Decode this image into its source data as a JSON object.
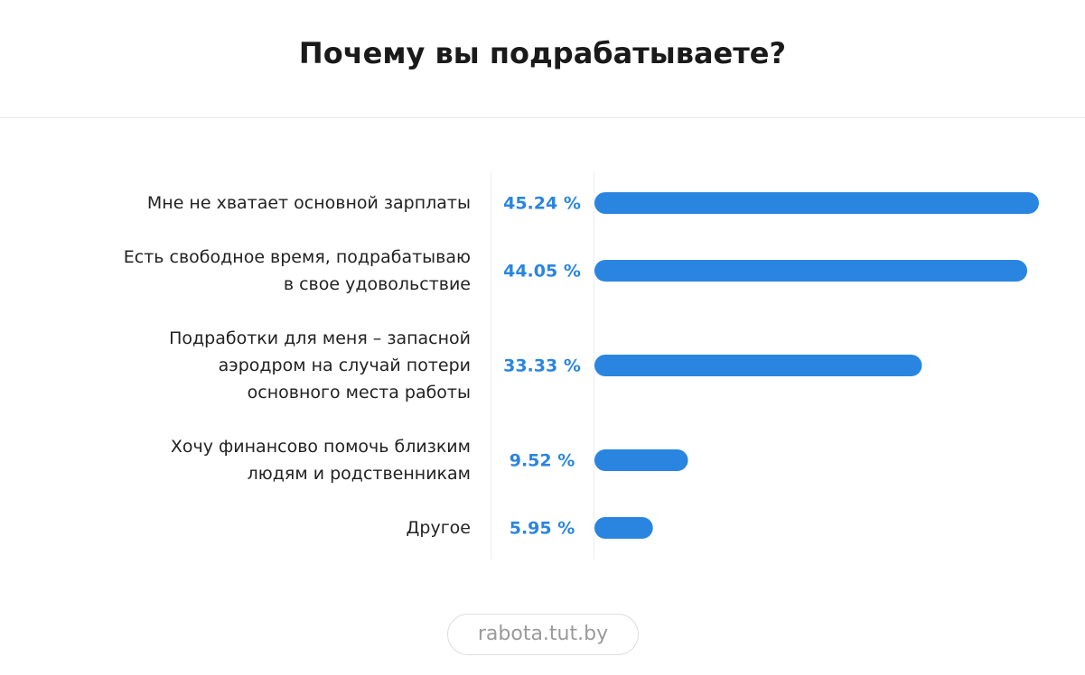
{
  "chart_data": {
    "type": "bar",
    "orientation": "horizontal",
    "title": "Почему вы подрабатываете?",
    "categories": [
      "Мне не хватает основной зарплаты",
      "Есть свободное время, подрабатываю\nв свое удовольствие",
      "Подработки для меня – запасной\nаэродром на случай потери\nосновного места работы",
      "Хочу финансово помочь близким\nлюдям и родственникам",
      "Другое"
    ],
    "values": [
      45.24,
      44.05,
      33.33,
      9.52,
      5.95
    ],
    "value_labels": [
      "45.24 %",
      "44.05 %",
      "33.33 %",
      "9.52 %",
      "5.95 %"
    ],
    "color": "#2a85e0",
    "source": "rabota.tut.by"
  }
}
